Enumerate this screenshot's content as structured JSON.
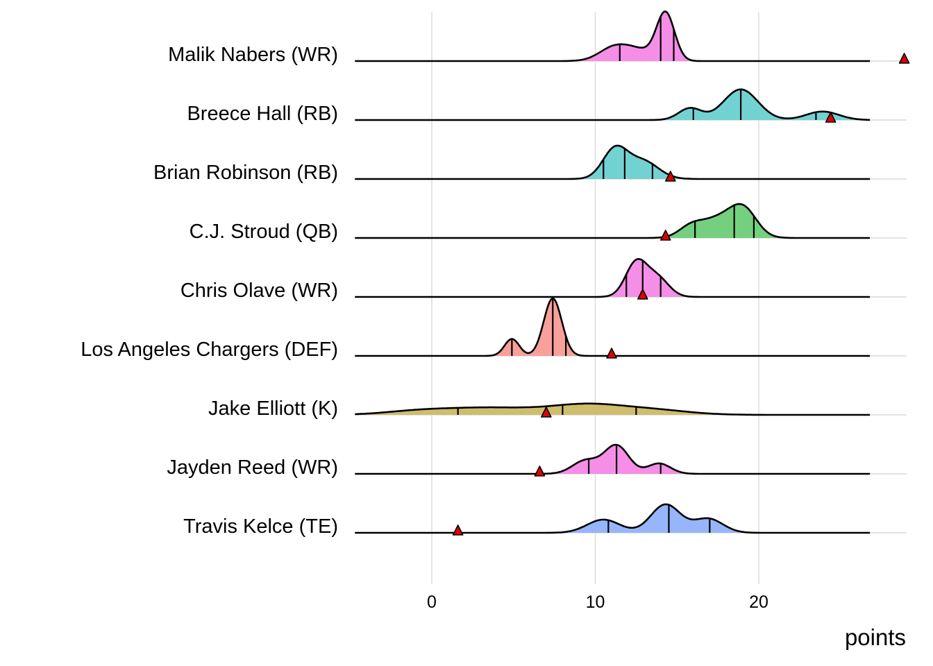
{
  "chart_data": {
    "type": "ridgeline",
    "title": "",
    "xlabel": "points",
    "ylabel": "",
    "xlim": [
      -4.7,
      29.0
    ],
    "x_ticks": [
      0,
      10,
      20
    ],
    "x_tick_labels": [
      "0",
      "10",
      "20"
    ],
    "grid": true,
    "legend": "none",
    "density_range": [
      -4.7,
      26.8
    ],
    "quantile_lines": [
      0.25,
      0.5,
      0.75
    ],
    "marker": {
      "shape": "triangle",
      "color": "#e00000",
      "description": "actual points scored"
    },
    "series": [
      {
        "name": "Malik Nabers (WR)",
        "position": "WR",
        "color": "#f48ee6",
        "components": [
          [
            11.1,
            0.9,
            0.26
          ],
          [
            12.6,
            1.0,
            0.22
          ],
          [
            14.3,
            0.55,
            1.0
          ]
        ],
        "quartiles": [
          11.5,
          14.0,
          14.8
        ],
        "actual": 28.9
      },
      {
        "name": "Breece Hall (RB)",
        "position": "RB",
        "color": "#72d2d2",
        "components": [
          [
            15.8,
            0.7,
            0.25
          ],
          [
            18.9,
            1.05,
            0.65
          ],
          [
            23.9,
            1.0,
            0.18
          ]
        ],
        "quartiles": [
          16.0,
          18.9,
          23.5
        ],
        "actual": 24.4
      },
      {
        "name": "Brian Robinson (RB)",
        "position": "RB",
        "color": "#72d2d2",
        "components": [
          [
            11.2,
            0.75,
            0.62
          ],
          [
            12.9,
            0.95,
            0.38
          ]
        ],
        "quartiles": [
          10.5,
          11.8,
          13.5
        ],
        "actual": 14.6
      },
      {
        "name": "C.J. Stroud (QB)",
        "position": "QB",
        "color": "#74cf7e",
        "components": [
          [
            15.8,
            0.7,
            0.18
          ],
          [
            17.6,
            1.2,
            0.42
          ],
          [
            19.1,
            0.8,
            0.5
          ]
        ],
        "quartiles": [
          16.1,
          18.5,
          19.7
        ],
        "actual": 14.3
      },
      {
        "name": "Chris Olave (WR)",
        "position": "WR",
        "color": "#f48ee6",
        "components": [
          [
            12.5,
            0.65,
            0.72
          ],
          [
            13.8,
            0.7,
            0.4
          ]
        ],
        "quartiles": [
          11.9,
          12.9,
          14.0
        ],
        "actual": 12.9
      },
      {
        "name": "Los Angeles Chargers (DEF)",
        "position": "DEF",
        "color": "#f8a09a",
        "components": [
          [
            4.9,
            0.45,
            0.36
          ],
          [
            7.4,
            0.55,
            1.22
          ]
        ],
        "quartiles": [
          4.9,
          7.4,
          8.2
        ],
        "actual": 11.0
      },
      {
        "name": "Jake Elliott (K)",
        "position": "K",
        "color": "#cebd6c",
        "components": [
          [
            -1.0,
            2.0,
            0.06
          ],
          [
            3.5,
            3.0,
            0.15
          ],
          [
            9.5,
            2.2,
            0.2
          ],
          [
            13.5,
            2.2,
            0.1
          ]
        ],
        "quartiles": [
          1.6,
          8.0,
          12.5
        ],
        "actual": 7.0
      },
      {
        "name": "Jayden Reed (WR)",
        "position": "WR",
        "color": "#f48ee6",
        "components": [
          [
            9.4,
            0.8,
            0.28
          ],
          [
            11.3,
            0.75,
            0.6
          ],
          [
            13.9,
            0.7,
            0.22
          ]
        ],
        "quartiles": [
          9.6,
          11.3,
          14.0
        ],
        "actual": 6.6
      },
      {
        "name": "Travis Kelce (TE)",
        "position": "TE",
        "color": "#97b5fb",
        "components": [
          [
            10.5,
            1.0,
            0.28
          ],
          [
            14.3,
            0.9,
            0.6
          ],
          [
            16.9,
            0.9,
            0.3
          ]
        ],
        "quartiles": [
          10.8,
          14.5,
          17.0
        ],
        "actual": 1.6
      }
    ]
  }
}
